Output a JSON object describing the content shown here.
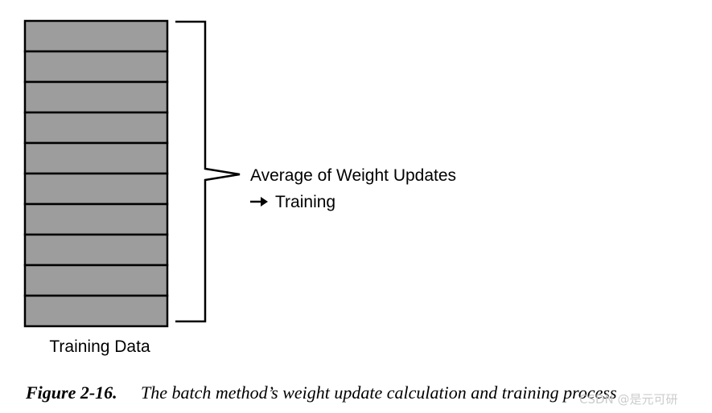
{
  "diagram": {
    "bracket_label": "Average of Weight Updates",
    "arrow_label": "Training",
    "stack_label": "Training Data"
  },
  "caption": {
    "number": "Figure 2-16.",
    "text": "The batch method’s weight update calculation and training process"
  },
  "watermark": "CSDN @是元可研"
}
